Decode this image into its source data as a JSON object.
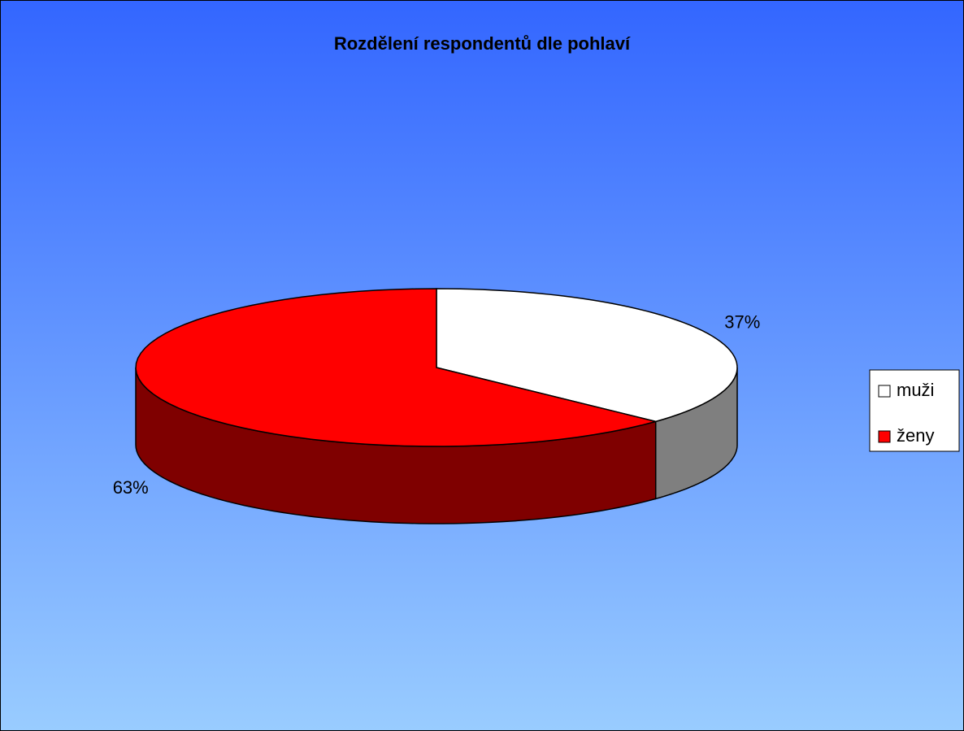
{
  "chart_data": {
    "type": "pie",
    "title": "Rozdělení respondentů dle pohlaví",
    "categories": [
      "muži",
      "ženy"
    ],
    "values": [
      37,
      63
    ],
    "value_labels": [
      "37%",
      "63%"
    ],
    "colors": [
      "#ffffff",
      "#ff0000"
    ],
    "legend": "right"
  }
}
